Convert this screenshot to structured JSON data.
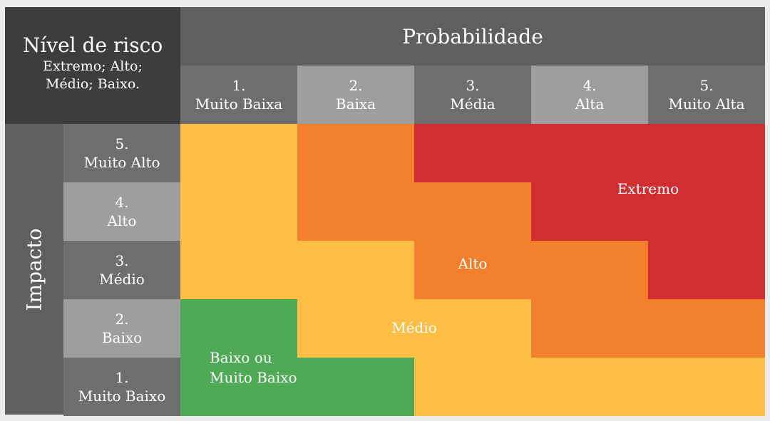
{
  "header": {
    "title": "Nível de risco",
    "levels_line1": "Extremo; Alto;",
    "levels_line2": "Médio; Baixo."
  },
  "probability": {
    "title": "Probabilidade",
    "columns": [
      {
        "num": "1.",
        "label": "Muito Baixa"
      },
      {
        "num": "2.",
        "label": "Baixa"
      },
      {
        "num": "3.",
        "label": "Média"
      },
      {
        "num": "4.",
        "label": "Alta"
      },
      {
        "num": "5.",
        "label": "Muito Alta"
      }
    ]
  },
  "impact": {
    "title": "Impacto",
    "rows": [
      {
        "num": "5.",
        "label": "Muito Alto"
      },
      {
        "num": "4.",
        "label": "Alto"
      },
      {
        "num": "3.",
        "label": "Médio"
      },
      {
        "num": "2.",
        "label": "Baixo"
      },
      {
        "num": "1.",
        "label": "Muito Baixo"
      }
    ]
  },
  "zones": {
    "extremo": "Extremo",
    "alto": "Alto",
    "medio": "Médio",
    "baixo_line1": "Baixo ou",
    "baixo_line2": "Muito Baixo"
  },
  "colors": {
    "extremo": "#d22d30",
    "alto": "#f27f2b",
    "medio": "#fcbe45",
    "baixo": "#4faa56"
  },
  "risk_grid_rows_impact_5_to_1": [
    [
      "medio",
      "alto",
      "extremo",
      "extremo",
      "extremo"
    ],
    [
      "medio",
      "alto",
      "alto",
      "extremo",
      "extremo"
    ],
    [
      "medio",
      "medio",
      "alto",
      "alto",
      "extremo"
    ],
    [
      "baixo",
      "medio",
      "medio",
      "alto",
      "alto"
    ],
    [
      "baixo",
      "baixo",
      "medio",
      "medio",
      "medio"
    ]
  ]
}
